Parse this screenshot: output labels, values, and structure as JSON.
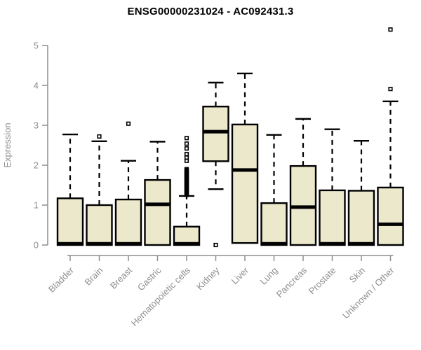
{
  "chart_data": {
    "type": "boxplot",
    "title": "ENSG00000231024 - AC092431.3",
    "ylabel": "Expression",
    "xlabel": "",
    "ylim": [
      0,
      5
    ],
    "yticks": [
      0,
      1,
      2,
      3,
      4,
      5
    ],
    "grid": false,
    "legend": "none",
    "categories": [
      "Bladder",
      "Brain",
      "Breast",
      "Gastric",
      "Hematopoietic cells",
      "Kidney",
      "Liver",
      "Lung",
      "Pancreas",
      "Prostate",
      "Skin",
      "Unknown / Other"
    ],
    "boxes": [
      {
        "label": "Bladder",
        "low": 0,
        "q1": 0,
        "median": 0.03,
        "q3": 1.17,
        "high": 2.77,
        "outliers": []
      },
      {
        "label": "Brain",
        "low": 0,
        "q1": 0,
        "median": 0.03,
        "q3": 1.0,
        "high": 2.6,
        "outliers": [
          2.72
        ]
      },
      {
        "label": "Breast",
        "low": 0,
        "q1": 0,
        "median": 0.03,
        "q3": 1.14,
        "high": 2.11,
        "outliers": [
          3.04
        ]
      },
      {
        "label": "Gastric",
        "low": 0,
        "q1": 0,
        "median": 1.02,
        "q3": 1.63,
        "high": 2.59,
        "outliers": []
      },
      {
        "label": "Hematopoietic cells",
        "low": 0,
        "q1": 0,
        "median": 0.03,
        "q3": 0.46,
        "high": 1.23,
        "outliers": [
          1.26,
          1.28,
          1.3,
          1.32,
          1.34,
          1.36,
          1.38,
          1.4,
          1.42,
          1.44,
          1.46,
          1.48,
          1.5,
          1.52,
          1.54,
          1.56,
          1.58,
          1.6,
          1.62,
          1.64,
          1.66,
          1.68,
          1.7,
          1.72,
          1.74,
          1.76,
          1.78,
          1.8,
          1.82,
          1.84,
          1.86,
          1.88,
          1.9,
          2.11,
          2.19,
          2.28,
          2.42,
          2.54,
          2.68
        ]
      },
      {
        "label": "Kidney",
        "low": 1.4,
        "q1": 2.1,
        "median": 2.84,
        "q3": 3.47,
        "high": 4.07,
        "outliers": [
          0.0
        ]
      },
      {
        "label": "Liver",
        "low": 0.05,
        "q1": 0.05,
        "median": 1.88,
        "q3": 3.02,
        "high": 4.3,
        "outliers": []
      },
      {
        "label": "Lung",
        "low": 0,
        "q1": 0,
        "median": 0.03,
        "q3": 1.05,
        "high": 2.76,
        "outliers": []
      },
      {
        "label": "Pancreas",
        "low": 0,
        "q1": 0,
        "median": 0.95,
        "q3": 1.98,
        "high": 3.16,
        "outliers": []
      },
      {
        "label": "Prostate",
        "low": 0,
        "q1": 0,
        "median": 0.03,
        "q3": 1.37,
        "high": 2.9,
        "outliers": []
      },
      {
        "label": "Skin",
        "low": 0,
        "q1": 0,
        "median": 0.03,
        "q3": 1.36,
        "high": 2.61,
        "outliers": []
      },
      {
        "label": "Unknown / Other",
        "low": 0,
        "q1": 0,
        "median": 0.52,
        "q3": 1.44,
        "high": 3.6,
        "outliers": [
          3.91,
          5.4
        ]
      }
    ],
    "colors": {
      "box_fill": "#ece8cc",
      "box_border": "#000000",
      "median": "#000000",
      "whisker": "#000000",
      "outlier": "#000000",
      "axis": "#8e8e8e",
      "tick_label": "#8e8e8e",
      "title_color": "#000000",
      "background": "#ffffff"
    }
  }
}
